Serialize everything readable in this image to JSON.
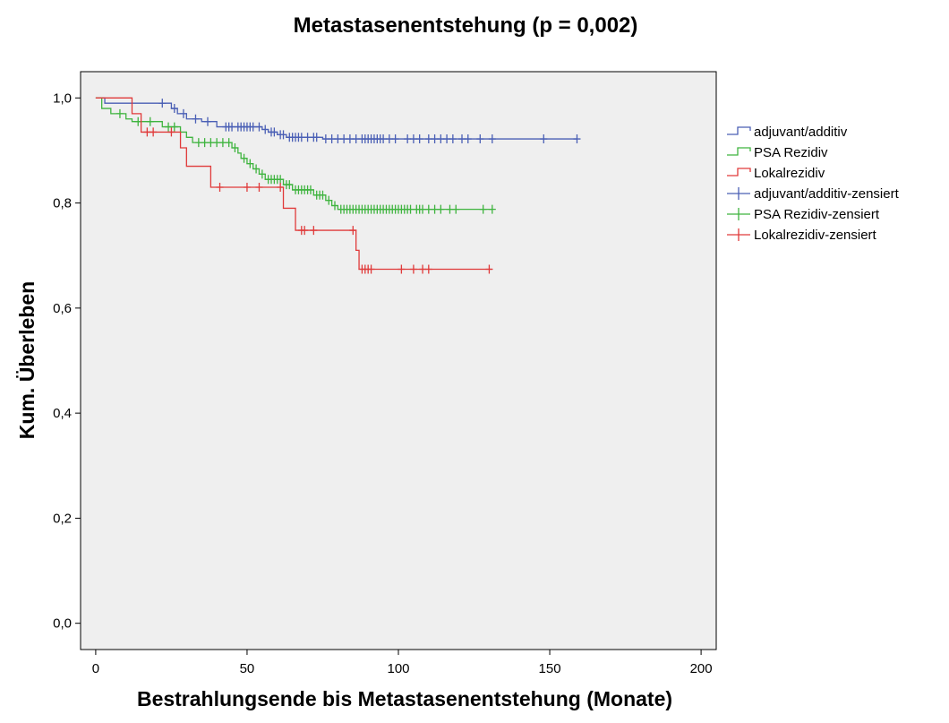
{
  "chart_data": {
    "type": "line",
    "subtype": "kaplan-meier-step",
    "title": "Metastasenentstehung (p = 0,002)",
    "xlabel": "Bestrahlungsende bis Metastasenentstehung (Monate)",
    "ylabel": "Kum. Überleben",
    "xlim": [
      -5,
      205
    ],
    "ylim": [
      -0.05,
      1.05
    ],
    "xticks": [
      0,
      50,
      100,
      150,
      200
    ],
    "xtick_labels": [
      "0",
      "50",
      "100",
      "150",
      "200"
    ],
    "yticks": [
      0.0,
      0.2,
      0.4,
      0.6,
      0.8,
      1.0
    ],
    "ytick_labels": [
      "0,0",
      "0,2",
      "0,4",
      "0,6",
      "0,8",
      "1,0"
    ],
    "grid": false,
    "background": "#efefef",
    "legend_position": "right",
    "legend": [
      {
        "label": "adjuvant/additiv",
        "kind": "step",
        "series": 0
      },
      {
        "label": "PSA Rezidiv",
        "kind": "step",
        "series": 1
      },
      {
        "label": "Lokalrezidiv",
        "kind": "step",
        "series": 2
      },
      {
        "label": "adjuvant/additiv-zensiert",
        "kind": "censor",
        "series": 0
      },
      {
        "label": "PSA Rezidiv-zensiert",
        "kind": "censor",
        "series": 1
      },
      {
        "label": "Lokalrezidiv-zensiert",
        "kind": "censor",
        "series": 2
      }
    ],
    "series": [
      {
        "name": "adjuvant/additiv",
        "color": "#4a5fb5",
        "steps": [
          [
            0,
            1.0
          ],
          [
            3,
            0.99
          ],
          [
            25,
            0.98
          ],
          [
            27,
            0.97
          ],
          [
            30,
            0.96
          ],
          [
            35,
            0.955
          ],
          [
            40,
            0.945
          ],
          [
            55,
            0.94
          ],
          [
            57,
            0.935
          ],
          [
            60,
            0.93
          ],
          [
            63,
            0.925
          ],
          [
            75,
            0.922
          ]
        ],
        "end": 159,
        "censored": [
          [
            22,
            0.99
          ],
          [
            26,
            0.98
          ],
          [
            29,
            0.97
          ],
          [
            33,
            0.96
          ],
          [
            37,
            0.955
          ],
          [
            43,
            0.945
          ],
          [
            44,
            0.945
          ],
          [
            45,
            0.945
          ],
          [
            47,
            0.945
          ],
          [
            48,
            0.945
          ],
          [
            49,
            0.945
          ],
          [
            50,
            0.945
          ],
          [
            51,
            0.945
          ],
          [
            52,
            0.945
          ],
          [
            54,
            0.945
          ],
          [
            56,
            0.94
          ],
          [
            58,
            0.935
          ],
          [
            59,
            0.935
          ],
          [
            61,
            0.93
          ],
          [
            62,
            0.93
          ],
          [
            64,
            0.925
          ],
          [
            65,
            0.925
          ],
          [
            66,
            0.925
          ],
          [
            67,
            0.925
          ],
          [
            68,
            0.925
          ],
          [
            70,
            0.925
          ],
          [
            72,
            0.925
          ],
          [
            73,
            0.925
          ],
          [
            76,
            0.922
          ],
          [
            78,
            0.922
          ],
          [
            80,
            0.922
          ],
          [
            82,
            0.922
          ],
          [
            84,
            0.922
          ],
          [
            86,
            0.922
          ],
          [
            88,
            0.922
          ],
          [
            89,
            0.922
          ],
          [
            90,
            0.922
          ],
          [
            91,
            0.922
          ],
          [
            92,
            0.922
          ],
          [
            93,
            0.922
          ],
          [
            94,
            0.922
          ],
          [
            95,
            0.922
          ],
          [
            97,
            0.922
          ],
          [
            99,
            0.922
          ],
          [
            103,
            0.922
          ],
          [
            105,
            0.922
          ],
          [
            107,
            0.922
          ],
          [
            110,
            0.922
          ],
          [
            112,
            0.922
          ],
          [
            114,
            0.922
          ],
          [
            116,
            0.922
          ],
          [
            118,
            0.922
          ],
          [
            121,
            0.922
          ],
          [
            123,
            0.922
          ],
          [
            127,
            0.922
          ],
          [
            131,
            0.922
          ],
          [
            148,
            0.922
          ],
          [
            159,
            0.922
          ]
        ]
      },
      {
        "name": "PSA Rezidiv",
        "color": "#3fb43f",
        "steps": [
          [
            0,
            1.0
          ],
          [
            2,
            0.98
          ],
          [
            5,
            0.97
          ],
          [
            10,
            0.96
          ],
          [
            12,
            0.955
          ],
          [
            22,
            0.945
          ],
          [
            28,
            0.935
          ],
          [
            30,
            0.925
          ],
          [
            32,
            0.915
          ],
          [
            45,
            0.905
          ],
          [
            47,
            0.895
          ],
          [
            48,
            0.885
          ],
          [
            50,
            0.875
          ],
          [
            52,
            0.865
          ],
          [
            54,
            0.855
          ],
          [
            56,
            0.845
          ],
          [
            62,
            0.835
          ],
          [
            65,
            0.825
          ],
          [
            72,
            0.815
          ],
          [
            76,
            0.805
          ],
          [
            78,
            0.795
          ],
          [
            80,
            0.788
          ]
        ],
        "end": 131,
        "censored": [
          [
            8,
            0.97
          ],
          [
            14,
            0.955
          ],
          [
            18,
            0.955
          ],
          [
            24,
            0.945
          ],
          [
            26,
            0.945
          ],
          [
            34,
            0.915
          ],
          [
            36,
            0.915
          ],
          [
            38,
            0.915
          ],
          [
            40,
            0.915
          ],
          [
            42,
            0.915
          ],
          [
            44,
            0.915
          ],
          [
            46,
            0.905
          ],
          [
            49,
            0.885
          ],
          [
            51,
            0.875
          ],
          [
            53,
            0.865
          ],
          [
            55,
            0.855
          ],
          [
            57,
            0.845
          ],
          [
            58,
            0.845
          ],
          [
            59,
            0.845
          ],
          [
            60,
            0.845
          ],
          [
            61,
            0.845
          ],
          [
            63,
            0.835
          ],
          [
            64,
            0.835
          ],
          [
            66,
            0.825
          ],
          [
            67,
            0.825
          ],
          [
            68,
            0.825
          ],
          [
            69,
            0.825
          ],
          [
            70,
            0.825
          ],
          [
            71,
            0.825
          ],
          [
            73,
            0.815
          ],
          [
            74,
            0.815
          ],
          [
            75,
            0.815
          ],
          [
            77,
            0.805
          ],
          [
            79,
            0.795
          ],
          [
            81,
            0.788
          ],
          [
            82,
            0.788
          ],
          [
            83,
            0.788
          ],
          [
            84,
            0.788
          ],
          [
            85,
            0.788
          ],
          [
            86,
            0.788
          ],
          [
            87,
            0.788
          ],
          [
            88,
            0.788
          ],
          [
            89,
            0.788
          ],
          [
            90,
            0.788
          ],
          [
            91,
            0.788
          ],
          [
            92,
            0.788
          ],
          [
            93,
            0.788
          ],
          [
            94,
            0.788
          ],
          [
            95,
            0.788
          ],
          [
            96,
            0.788
          ],
          [
            97,
            0.788
          ],
          [
            98,
            0.788
          ],
          [
            99,
            0.788
          ],
          [
            100,
            0.788
          ],
          [
            101,
            0.788
          ],
          [
            102,
            0.788
          ],
          [
            103,
            0.788
          ],
          [
            104,
            0.788
          ],
          [
            106,
            0.788
          ],
          [
            107,
            0.788
          ],
          [
            108,
            0.788
          ],
          [
            110,
            0.788
          ],
          [
            112,
            0.788
          ],
          [
            114,
            0.788
          ],
          [
            117,
            0.788
          ],
          [
            119,
            0.788
          ],
          [
            128,
            0.788
          ],
          [
            131,
            0.788
          ]
        ]
      },
      {
        "name": "Lokalrezidiv",
        "color": "#e03a3a",
        "steps": [
          [
            0,
            1.0
          ],
          [
            12,
            0.97
          ],
          [
            15,
            0.935
          ],
          [
            28,
            0.905
          ],
          [
            30,
            0.87
          ],
          [
            38,
            0.83
          ],
          [
            62,
            0.79
          ],
          [
            66,
            0.748
          ],
          [
            86,
            0.71
          ],
          [
            87,
            0.674
          ]
        ],
        "end": 131,
        "censored": [
          [
            17,
            0.935
          ],
          [
            19,
            0.935
          ],
          [
            25,
            0.935
          ],
          [
            41,
            0.83
          ],
          [
            50,
            0.83
          ],
          [
            54,
            0.83
          ],
          [
            61,
            0.83
          ],
          [
            68,
            0.748
          ],
          [
            69,
            0.748
          ],
          [
            72,
            0.748
          ],
          [
            85,
            0.748
          ],
          [
            88,
            0.674
          ],
          [
            89,
            0.674
          ],
          [
            90,
            0.674
          ],
          [
            91,
            0.674
          ],
          [
            101,
            0.674
          ],
          [
            105,
            0.674
          ],
          [
            108,
            0.674
          ],
          [
            110,
            0.674
          ],
          [
            130,
            0.674
          ]
        ]
      }
    ]
  }
}
